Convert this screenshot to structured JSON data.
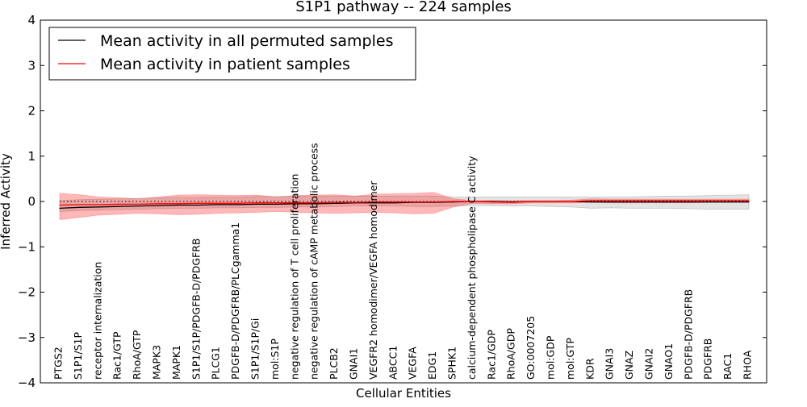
{
  "chart_data": {
    "type": "line",
    "title": "S1P1 pathway -- 224 samples",
    "xlabel": "Cellular Entities",
    "ylabel": "Inferred Activity",
    "ylim": [
      -4,
      4
    ],
    "yticks": [
      "−4",
      "−3",
      "−2",
      "−1",
      "0",
      "1",
      "2",
      "3",
      "4"
    ],
    "legend": {
      "placement": "top-left",
      "entries": [
        {
          "name": "Mean activity in all permuted samples",
          "color": "#000000"
        },
        {
          "name": "Mean activity in patient samples",
          "color": "#ff0000"
        }
      ]
    },
    "categories": [
      "PTGS2",
      "S1P1/S1P",
      "receptor internalization",
      "Rac1/GTP",
      "RhoA/GTP",
      "MAPK3",
      "MAPK1",
      "S1P1/S1P/PDGFB-D/PDGFRB",
      "PLCG1",
      "PDGFB-D/PDGFRB/PLCgamma1",
      "S1P1/S1P/Gi",
      "mol:S1P",
      "negative regulation of T cell proliferation",
      "negative regulation of cAMP metabolic process",
      "PLCB2",
      "GNAI1",
      "VEGFR2 homodimer/VEGFA homodimer",
      "ABCC1",
      "VEGFA",
      "EDG1",
      "SPHK1",
      "calcium-dependent phospholipase C activity",
      "Rac1/GDP",
      "RhoA/GDP",
      "GO:0007205",
      "mol:GDP",
      "mol:GTP",
      "KDR",
      "GNAI3",
      "GNAZ",
      "GNAI2",
      "GNAO1",
      "PDGFB-D/PDGFRB",
      "PDGFRB",
      "RAC1",
      "RHOA"
    ],
    "series": [
      {
        "name": "Mean activity in all permuted samples",
        "color": "#000000",
        "values": [
          -0.15,
          -0.13,
          -0.12,
          -0.11,
          -0.1,
          -0.09,
          -0.08,
          -0.08,
          -0.07,
          -0.07,
          -0.06,
          -0.06,
          -0.05,
          -0.05,
          -0.04,
          -0.03,
          -0.03,
          -0.03,
          -0.02,
          -0.02,
          -0.01,
          0,
          0,
          -0.01,
          0,
          0,
          0,
          -0.01,
          -0.01,
          -0.01,
          -0.01,
          -0.01,
          -0.01,
          -0.01,
          -0.01,
          -0.01
        ],
        "band_low": [
          -0.22,
          -0.2,
          -0.19,
          -0.18,
          -0.17,
          -0.16,
          -0.15,
          -0.15,
          -0.14,
          -0.14,
          -0.13,
          -0.13,
          -0.12,
          -0.12,
          -0.11,
          -0.1,
          -0.1,
          -0.1,
          -0.11,
          -0.11,
          -0.1,
          -0.09,
          -0.09,
          -0.1,
          -0.1,
          -0.11,
          -0.12,
          -0.15,
          -0.14,
          -0.15,
          -0.15,
          -0.15,
          -0.16,
          -0.17,
          -0.17,
          -0.17
        ],
        "band_high": [
          0.02,
          0.04,
          0.05,
          0.06,
          0.07,
          0.08,
          0.09,
          0.09,
          0.1,
          0.1,
          0.11,
          0.11,
          0.12,
          0.12,
          0.12,
          0.12,
          0.12,
          0.12,
          0.12,
          0.12,
          0.1,
          0.1,
          0.1,
          0.1,
          0.1,
          0.1,
          0.1,
          0.1,
          0.1,
          0.1,
          0.11,
          0.12,
          0.12,
          0.13,
          0.14,
          0.15
        ]
      },
      {
        "name": "Mean activity in patient samples",
        "color": "#ff0000",
        "values": [
          -0.08,
          -0.07,
          -0.07,
          -0.06,
          -0.06,
          -0.05,
          -0.05,
          -0.04,
          -0.04,
          -0.04,
          -0.03,
          -0.03,
          -0.03,
          -0.03,
          -0.02,
          -0.02,
          -0.01,
          -0.01,
          -0.01,
          -0.01,
          0,
          0,
          -0.01,
          -0.02,
          0,
          0,
          0,
          0.02,
          0.02,
          0.02,
          0.02,
          0.02,
          0.02,
          0.02,
          0.02,
          0.02
        ],
        "band_low": [
          -0.4,
          -0.35,
          -0.3,
          -0.28,
          -0.26,
          -0.27,
          -0.29,
          -0.28,
          -0.26,
          -0.25,
          -0.24,
          -0.22,
          -0.24,
          -0.25,
          -0.26,
          -0.25,
          -0.24,
          -0.25,
          -0.27,
          -0.26,
          -0.12,
          -0.04,
          -0.05,
          -0.05,
          -0.03,
          -0.03,
          -0.03,
          -0.02,
          -0.03,
          -0.03,
          -0.03,
          -0.03,
          -0.03,
          -0.02,
          -0.02,
          -0.02
        ],
        "band_high": [
          0.18,
          0.15,
          0.1,
          0.08,
          0.06,
          0.1,
          0.14,
          0.15,
          0.14,
          0.13,
          0.14,
          0.1,
          0.13,
          0.14,
          0.15,
          0.12,
          0.16,
          0.17,
          0.18,
          0.2,
          0.06,
          0.02,
          0.02,
          0.02,
          0.02,
          0.02,
          0.03,
          0.06,
          0.05,
          0.05,
          0.05,
          0.05,
          0.05,
          0.05,
          0.05,
          0.05
        ]
      }
    ]
  }
}
